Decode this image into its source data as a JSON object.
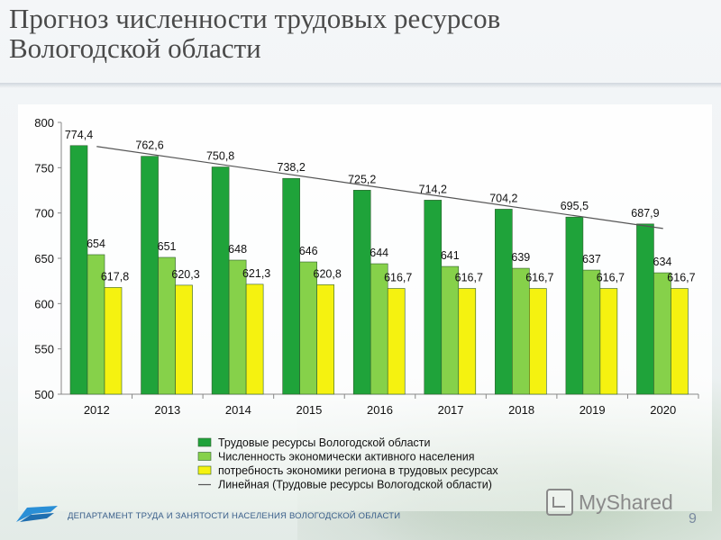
{
  "slide": {
    "title_line1": "Прогноз численности трудовых ресурсов",
    "title_line2": "Вологодской области",
    "footer_text": "ДЕПАРТАМЕНТ ТРУДА И ЗАНЯТОСТИ НАСЕЛЕНИЯ ВОЛОГОДСКОЙ ОБЛАСТИ",
    "brand_text": "MyShared",
    "page_number": "9"
  },
  "chart_data": {
    "type": "bar",
    "categories": [
      "2012",
      "2013",
      "2014",
      "2015",
      "2016",
      "2017",
      "2018",
      "2019",
      "2020"
    ],
    "series": [
      {
        "name": "Трудовые ресурсы Вологодской области",
        "color": "#1fa33a",
        "values": [
          774.4,
          762.6,
          750.8,
          738.2,
          725.2,
          714.2,
          704.2,
          695.5,
          687.9
        ],
        "labels": [
          "774,4",
          "762,6",
          "750,8",
          "738,2",
          "725,2",
          "714,2",
          "704,2",
          "695,5",
          "687,9"
        ]
      },
      {
        "name": "Численность экономически активного населения",
        "color": "#86d14a",
        "values": [
          654,
          651,
          648,
          646,
          644,
          641,
          639,
          637,
          634
        ],
        "labels": [
          "654",
          "651",
          "648",
          "646",
          "644",
          "641",
          "639",
          "637",
          "634"
        ]
      },
      {
        "name": "потребность экономики региона в трудовых ресурсах",
        "color": "#f5f210",
        "values": [
          617.8,
          620.3,
          621.3,
          620.8,
          616.7,
          616.7,
          616.7,
          616.7,
          616.7
        ],
        "labels": [
          "617,8",
          "620,3",
          "621,3",
          "620,8",
          "616,7",
          "616,7",
          "616,7",
          "616,7",
          "616,7"
        ]
      }
    ],
    "trendline": {
      "name": "Линейная (Трудовые ресурсы Вологодской области)",
      "color": "#555555",
      "start": 773.4,
      "end": 682.9
    },
    "ylim": [
      500,
      800
    ],
    "yticks": [
      "500",
      "550",
      "600",
      "650",
      "700",
      "750",
      "800"
    ],
    "grid": false,
    "legend_position": "bottom"
  }
}
